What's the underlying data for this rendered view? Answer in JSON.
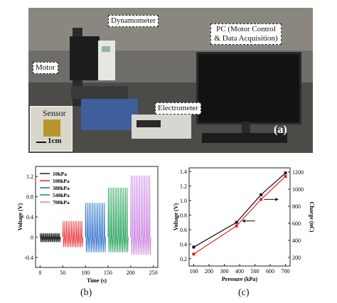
{
  "photo": {
    "labels": {
      "dynamometer": "Dynamometer",
      "pc": "PC (Motor Control & Data Acquisition)",
      "motor": "Motor",
      "electrometer": "Electrometer",
      "sensor": "Sensor",
      "scale": "1cm",
      "panel": "(a)"
    }
  },
  "chart_data": [
    {
      "type": "line",
      "panel": "(b)",
      "xlabel": "Time (s)",
      "ylabel": "Voltage (V)",
      "xlim": [
        -10,
        260
      ],
      "ylim": [
        -0.6,
        1.4
      ],
      "xticks": [
        0,
        50,
        100,
        150,
        200,
        250
      ],
      "yticks": [
        -0.4,
        0.0,
        0.4,
        0.8,
        1.2
      ],
      "legend_position": "top-left",
      "series": [
        {
          "name": "10kPa",
          "color": "#222222",
          "x_range": [
            0,
            45
          ],
          "peak": 0.08,
          "valley": -0.1,
          "cycles": 18
        },
        {
          "name": "100kPa",
          "color": "#e8262a",
          "x_range": [
            50,
            95
          ],
          "peak": 0.32,
          "valley": -0.2,
          "cycles": 12
        },
        {
          "name": "380kPa",
          "color": "#1f66c7",
          "x_range": [
            100,
            145
          ],
          "peak": 0.68,
          "valley": -0.3,
          "cycles": 12
        },
        {
          "name": "540kPa",
          "color": "#0f9a4a",
          "x_range": [
            150,
            195
          ],
          "peak": 0.98,
          "valley": -0.3,
          "cycles": 12
        },
        {
          "name": "700kPa",
          "color": "#c77ae0",
          "x_range": [
            200,
            245
          ],
          "peak": 1.22,
          "valley": -0.35,
          "cycles": 12
        }
      ]
    },
    {
      "type": "line",
      "panel": "(c)",
      "xlabel": "Pressure (kPa)",
      "ylabel": "Voltage (V)",
      "y2label": "Charge (nC)",
      "xlim": [
        70,
        730
      ],
      "ylim": [
        0.1,
        1.45
      ],
      "y2lim": [
        100,
        1250
      ],
      "xticks": [
        100,
        200,
        300,
        400,
        500,
        600,
        700
      ],
      "yticks": [
        0.2,
        0.4,
        0.6,
        0.8,
        1.0,
        1.2,
        1.4
      ],
      "y2ticks": [
        200,
        400,
        600,
        800,
        1000,
        1200
      ],
      "series": [
        {
          "name": "",
          "axis": "left",
          "color": "#111111",
          "marker": "square",
          "x": [
            100,
            380,
            540,
            700
          ],
          "y": [
            0.36,
            0.7,
            1.08,
            1.38
          ]
        },
        {
          "name": "",
          "axis": "right",
          "color": "#e02020",
          "marker": "square",
          "x": [
            100,
            380,
            540,
            700
          ],
          "y": [
            240,
            570,
            880,
            1150
          ]
        }
      ]
    }
  ]
}
